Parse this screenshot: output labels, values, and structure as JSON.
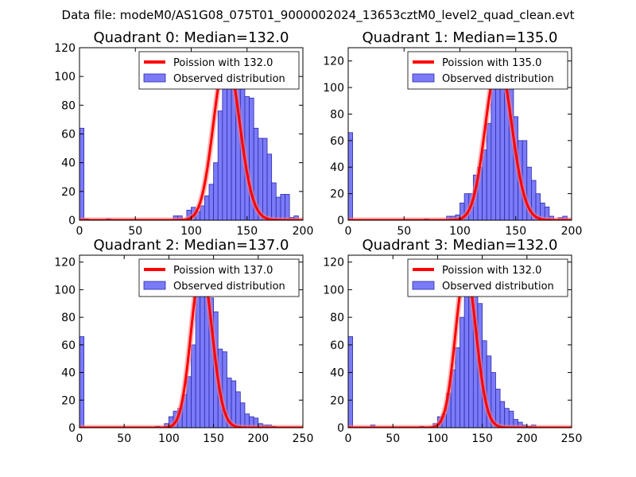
{
  "suptitle": "Data file: modeM0/AS1G08_075T01_9000002024_13653cztM0_level2_quad_clean.evt",
  "colors": {
    "bar_fill": "#7b7bf7",
    "bar_edge": "#2b2bb0",
    "curve": "#ff0000",
    "curve_glow": "#ff8080"
  },
  "chart_data": [
    {
      "type": "bar",
      "title": "Quadrant 0: Median=132.0",
      "median": 132.0,
      "xlim": [
        0,
        200
      ],
      "ylim": [
        0,
        120
      ],
      "xticks": [
        0,
        50,
        100,
        150,
        200
      ],
      "yticks": [
        0,
        20,
        40,
        60,
        80,
        100,
        120
      ],
      "bin_width": 4,
      "bins": [
        [
          0,
          64
        ],
        [
          4,
          1
        ],
        [
          24,
          1
        ],
        [
          84,
          3
        ],
        [
          88,
          3
        ],
        [
          96,
          7
        ],
        [
          100,
          9
        ],
        [
          104,
          6
        ],
        [
          108,
          10
        ],
        [
          112,
          17
        ],
        [
          116,
          25
        ],
        [
          120,
          40
        ],
        [
          124,
          76
        ],
        [
          128,
          100
        ],
        [
          132,
          114
        ],
        [
          136,
          112
        ],
        [
          140,
          100
        ],
        [
          144,
          97
        ],
        [
          148,
          86
        ],
        [
          152,
          85
        ],
        [
          156,
          64
        ],
        [
          160,
          57
        ],
        [
          164,
          57
        ],
        [
          168,
          46
        ],
        [
          172,
          26
        ],
        [
          176,
          16
        ],
        [
          180,
          18
        ],
        [
          184,
          18
        ],
        [
          188,
          2
        ],
        [
          192,
          3
        ]
      ],
      "curve_label": "Poission with 132.0",
      "bars_label": "Observed distribution"
    },
    {
      "type": "bar",
      "title": "Quadrant 1: Median=135.0",
      "median": 135.0,
      "xlim": [
        0,
        200
      ],
      "ylim": [
        0,
        130
      ],
      "xticks": [
        0,
        50,
        100,
        150,
        200
      ],
      "yticks": [
        0,
        20,
        40,
        60,
        80,
        100,
        120
      ],
      "bin_width": 4,
      "bins": [
        [
          0,
          66
        ],
        [
          68,
          1
        ],
        [
          88,
          3
        ],
        [
          92,
          3
        ],
        [
          96,
          4
        ],
        [
          100,
          13
        ],
        [
          104,
          20
        ],
        [
          108,
          20
        ],
        [
          112,
          34
        ],
        [
          116,
          40
        ],
        [
          120,
          53
        ],
        [
          124,
          73
        ],
        [
          128,
          100
        ],
        [
          132,
          108
        ],
        [
          136,
          100
        ],
        [
          140,
          120
        ],
        [
          144,
          110
        ],
        [
          148,
          78
        ],
        [
          152,
          60
        ],
        [
          156,
          60
        ],
        [
          160,
          40
        ],
        [
          164,
          30
        ],
        [
          168,
          20
        ],
        [
          172,
          13
        ],
        [
          176,
          10
        ],
        [
          180,
          3
        ],
        [
          188,
          2
        ],
        [
          192,
          3
        ]
      ],
      "curve_label": "Poission with 135.0",
      "bars_label": "Observed distribution"
    },
    {
      "type": "bar",
      "title": "Quadrant 2: Median=137.0",
      "median": 137.0,
      "xlim": [
        0,
        250
      ],
      "ylim": [
        0,
        125
      ],
      "xticks": [
        0,
        50,
        100,
        150,
        200,
        250
      ],
      "yticks": [
        0,
        20,
        40,
        60,
        80,
        100,
        120
      ],
      "bin_width": 5,
      "bins": [
        [
          0,
          66
        ],
        [
          85,
          1
        ],
        [
          95,
          3
        ],
        [
          100,
          8
        ],
        [
          105,
          12
        ],
        [
          110,
          14
        ],
        [
          115,
          24
        ],
        [
          120,
          37
        ],
        [
          125,
          60
        ],
        [
          130,
          96
        ],
        [
          135,
          116
        ],
        [
          140,
          110
        ],
        [
          145,
          94
        ],
        [
          150,
          84
        ],
        [
          155,
          57
        ],
        [
          160,
          55
        ],
        [
          165,
          36
        ],
        [
          170,
          34
        ],
        [
          175,
          26
        ],
        [
          180,
          18
        ],
        [
          185,
          10
        ],
        [
          190,
          8
        ],
        [
          195,
          7
        ],
        [
          200,
          3
        ],
        [
          205,
          2
        ],
        [
          210,
          2
        ],
        [
          215,
          1
        ]
      ],
      "curve_label": "Poission with 137.0",
      "bars_label": "Observed distribution"
    },
    {
      "type": "bar",
      "title": "Quadrant 3: Median=132.0",
      "median": 132.0,
      "xlim": [
        0,
        250
      ],
      "ylim": [
        0,
        125
      ],
      "xticks": [
        0,
        50,
        100,
        150,
        200,
        250
      ],
      "yticks": [
        0,
        20,
        40,
        60,
        80,
        100,
        120
      ],
      "bin_width": 5,
      "bins": [
        [
          0,
          66
        ],
        [
          25,
          2
        ],
        [
          80,
          1
        ],
        [
          95,
          3
        ],
        [
          100,
          8
        ],
        [
          105,
          10
        ],
        [
          110,
          25
        ],
        [
          115,
          42
        ],
        [
          120,
          58
        ],
        [
          125,
          80
        ],
        [
          130,
          100
        ],
        [
          135,
          114
        ],
        [
          140,
          100
        ],
        [
          145,
          90
        ],
        [
          150,
          63
        ],
        [
          155,
          52
        ],
        [
          160,
          40
        ],
        [
          165,
          28
        ],
        [
          170,
          19
        ],
        [
          175,
          14
        ],
        [
          180,
          12
        ],
        [
          185,
          6
        ],
        [
          190,
          4
        ],
        [
          195,
          2
        ],
        [
          200,
          1
        ],
        [
          205,
          2
        ]
      ],
      "curve_label": "Poission with 132.0",
      "bars_label": "Observed distribution"
    }
  ]
}
